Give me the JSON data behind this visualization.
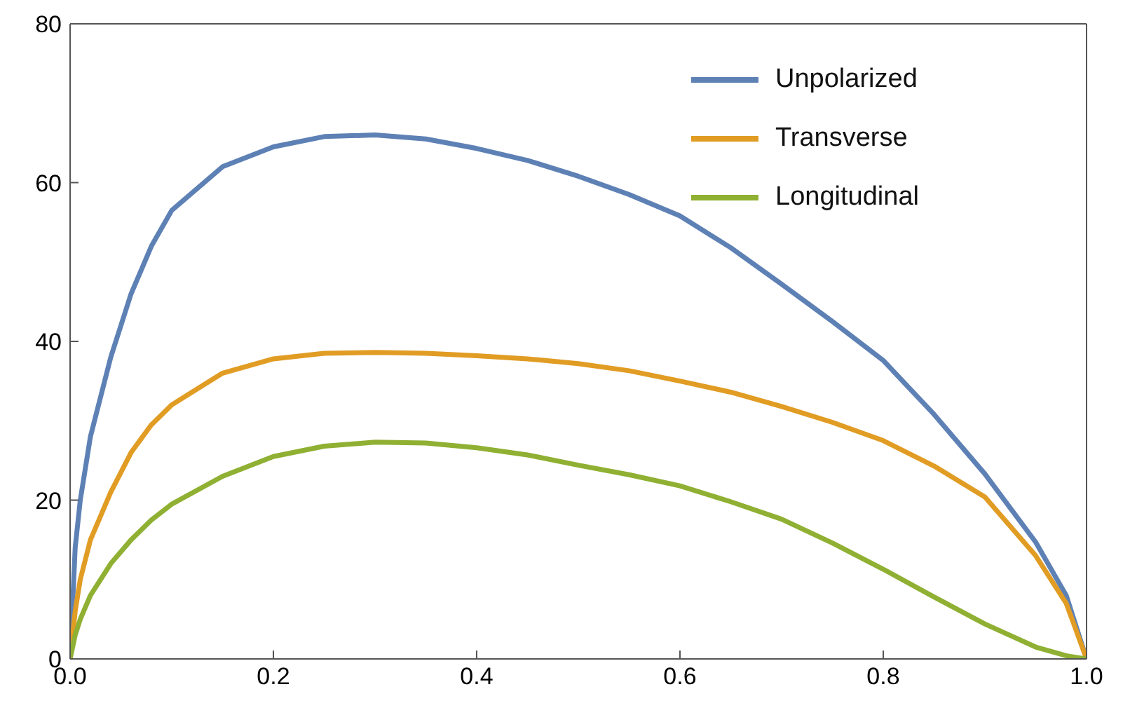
{
  "chart_data": {
    "type": "line",
    "x": [
      0,
      0.005,
      0.01,
      0.02,
      0.04,
      0.06,
      0.08,
      0.1,
      0.15,
      0.2,
      0.25,
      0.3,
      0.35,
      0.4,
      0.45,
      0.5,
      0.55,
      0.6,
      0.65,
      0.7,
      0.75,
      0.8,
      0.85,
      0.9,
      0.95,
      0.98,
      1
    ],
    "series": [
      {
        "name": "Unpolarized",
        "color": "#5e81b5",
        "values": [
          0,
          14,
          20,
          28,
          38,
          46,
          52,
          56.5,
          62,
          64.5,
          65.8,
          66,
          65.5,
          64.3,
          62.8,
          60.8,
          58.5,
          55.8,
          51.8,
          47.2,
          42.5,
          37.6,
          30.8,
          23.3,
          14.7,
          8,
          0
        ]
      },
      {
        "name": "Transverse",
        "color": "#e19c24",
        "values": [
          0,
          6,
          10,
          15,
          21,
          26,
          29.5,
          32,
          36,
          37.8,
          38.5,
          38.6,
          38.5,
          38.2,
          37.8,
          37.2,
          36.3,
          35,
          33.6,
          31.8,
          29.8,
          27.5,
          24.3,
          20.4,
          13,
          7,
          0
        ]
      },
      {
        "name": "Longitudinal",
        "color": "#8fb032",
        "values": [
          0,
          3,
          5,
          8,
          12,
          15,
          17.5,
          19.5,
          23,
          25.5,
          26.8,
          27.3,
          27.2,
          26.6,
          25.7,
          24.4,
          23.2,
          21.8,
          19.8,
          17.6,
          14.6,
          11.3,
          7.8,
          4.4,
          1.5,
          0.4,
          0
        ]
      }
    ],
    "xlim": [
      0,
      1
    ],
    "xticks": [
      {
        "value": 0,
        "label": "0.0"
      },
      {
        "value": 0.2,
        "label": "0.2"
      },
      {
        "value": 0.4,
        "label": "0.4"
      },
      {
        "value": 0.6,
        "label": "0.6"
      },
      {
        "value": 0.8,
        "label": "0.8"
      },
      {
        "value": 1,
        "label": "1.0"
      }
    ],
    "ylim": [
      0,
      80
    ],
    "yticks": [
      0,
      20,
      40,
      60,
      80
    ],
    "legend": "top right",
    "marker": "none",
    "line_style": "solid"
  }
}
